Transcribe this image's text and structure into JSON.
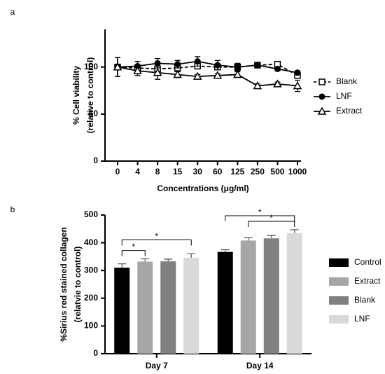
{
  "chart_data": [
    {
      "type": "line",
      "panel": "a",
      "xlabel": "Concentrations (μg/ml)",
      "ylabel": [
        "% Cell viability",
        "(relative to control)"
      ],
      "categories": [
        "0",
        "4",
        "8",
        "15",
        "30",
        "60",
        "125",
        "250",
        "500",
        "1000"
      ],
      "ylim": [
        0,
        140
      ],
      "yticks": [
        0,
        50,
        100
      ],
      "series": [
        {
          "name": "Blank",
          "color": "#000000",
          "dash": true,
          "marker": "square-open",
          "values": [
            100,
            99,
            98,
            99,
            101,
            100,
            100,
            102,
            103,
            91
          ],
          "errors": [
            10,
            3,
            3,
            3,
            3,
            3,
            3,
            2,
            2,
            3
          ]
        },
        {
          "name": "LNF",
          "color": "#000000",
          "dash": false,
          "marker": "circle",
          "values": [
            100,
            101,
            104,
            103,
            106,
            102,
            100,
            102,
            98,
            94
          ],
          "errors": [
            10,
            5,
            5,
            4,
            5,
            5,
            4,
            2,
            2,
            2
          ]
        },
        {
          "name": "Extract",
          "color": "#000000",
          "dash": false,
          "marker": "triangle-open",
          "values": [
            100,
            96,
            94,
            92,
            90,
            91,
            92,
            80,
            82,
            80
          ],
          "errors": [
            10,
            5,
            7,
            3,
            2,
            2,
            3,
            2,
            2,
            6
          ]
        }
      ]
    },
    {
      "type": "bar",
      "panel": "b",
      "ylabel": [
        "%Sirius red stained collagen",
        "(relatvie to control)"
      ],
      "categories": [
        "Day 7",
        "Day 14"
      ],
      "ylim": [
        0,
        500
      ],
      "yticks": [
        0,
        100,
        200,
        300,
        400,
        500
      ],
      "series": [
        {
          "name": "Control",
          "color": "#000000",
          "values": [
            310,
            367
          ],
          "errors": [
            14,
            8
          ]
        },
        {
          "name": "Extract",
          "color": "#a6a6a6",
          "values": [
            332,
            408
          ],
          "errors": [
            10,
            10
          ]
        },
        {
          "name": "Blank",
          "color": "#808080",
          "values": [
            333,
            416
          ],
          "errors": [
            8,
            10
          ]
        },
        {
          "name": "LNF",
          "color": "#d9d9d9",
          "values": [
            346,
            435
          ],
          "errors": [
            14,
            12
          ]
        }
      ],
      "annotations": [
        {
          "text": "*",
          "category": "Day 7",
          "between": [
            "Control",
            "Extract"
          ]
        },
        {
          "text": "*",
          "category": "Day 7",
          "between": [
            "Control",
            "LNF"
          ]
        },
        {
          "text": "*",
          "category": "Day 14",
          "between": [
            "Extract",
            "LNF"
          ]
        },
        {
          "text": "*",
          "category": "Day 14",
          "between": [
            "Control",
            "LNF"
          ]
        }
      ]
    }
  ]
}
